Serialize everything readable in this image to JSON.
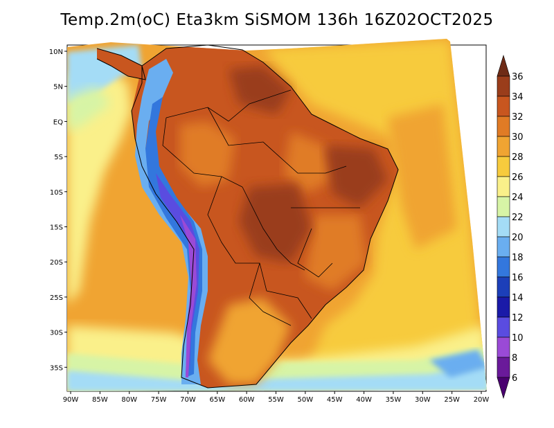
{
  "map": {
    "title": "Temp.2m(oC) Eta3km SiSMOM 136h 16Z02OCT2025",
    "lat_labels": [
      "10N",
      "5N",
      "EQ",
      "5S",
      "10S",
      "15S",
      "20S",
      "25S",
      "30S",
      "35S"
    ],
    "lon_labels": [
      "90W",
      "85W",
      "80W",
      "75W",
      "70W",
      "65W",
      "60W",
      "55W",
      "50W",
      "45W",
      "40W",
      "35W",
      "30W",
      "25W",
      "20W"
    ],
    "colorbar": {
      "labels": [
        "36",
        "34",
        "32",
        "30",
        "28",
        "26",
        "24",
        "22",
        "20",
        "18",
        "16",
        "14",
        "12",
        "10",
        "8",
        "6"
      ],
      "colors": [
        "#6e2b16",
        "#9a3d1b",
        "#c8561f",
        "#e07b25",
        "#f0a432",
        "#f7cb3d",
        "#faf08a",
        "#d7f4a6",
        "#a4dcf6",
        "#6aaef0",
        "#3377dd",
        "#1c3fb9",
        "#1a1aa8",
        "#5a4ce0",
        "#9a4ad6",
        "#6a1a9a",
        "#4a0070"
      ]
    }
  }
}
